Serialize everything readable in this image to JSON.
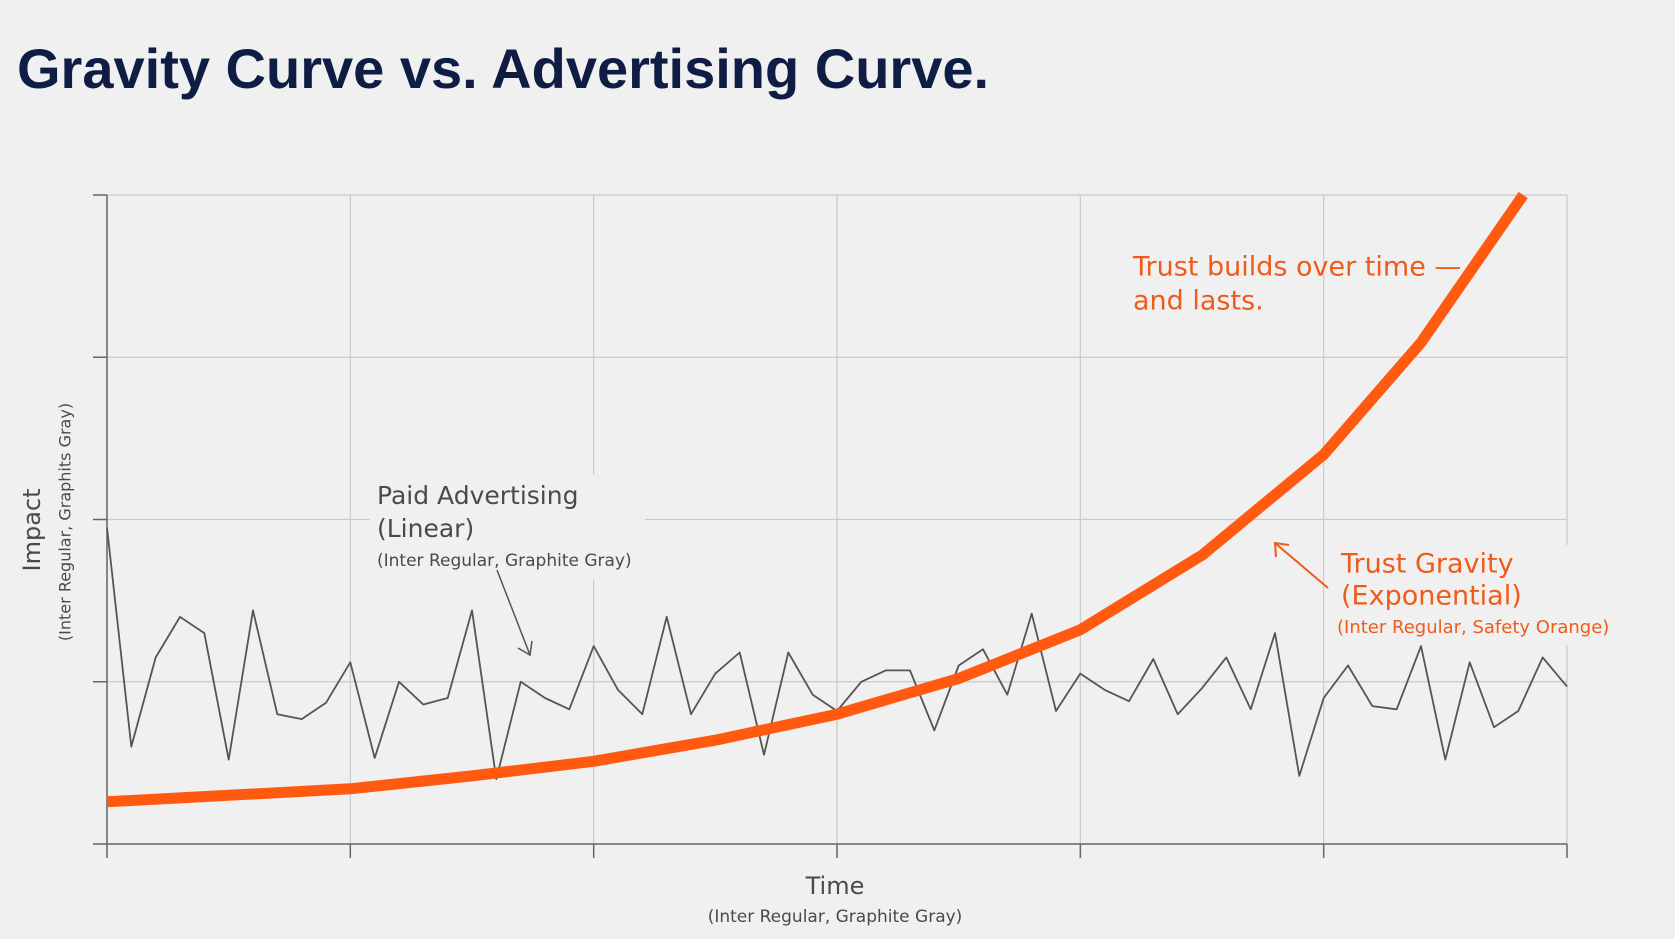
{
  "chart_data": {
    "type": "line",
    "title": "Gravity Curve vs. Advertising Curve.",
    "x_label": "Time",
    "x_label_note": "(Inter Regular, Graphite Gray)",
    "y_label": "Impact",
    "y_label_note": "(Inter Regular, Graphits Gray)",
    "xlim": [
      0,
      6
    ],
    "xticks": [
      0,
      1,
      2,
      3,
      4,
      5,
      6
    ],
    "ylim": [
      0,
      4
    ],
    "yticks": [
      0,
      1,
      2,
      3,
      4
    ],
    "grid": true,
    "annotations": [
      {
        "lines": [
          "Paid Advertising",
          "(Linear)"
        ],
        "note": "(Inter Regular, Graphite Gray)"
      },
      {
        "lines": [
          "Trust builds over time —",
          "and lasts."
        ]
      },
      {
        "lines": [
          "Trust Gravity",
          "(Exponential)"
        ],
        "note": "(Inter Regular, Safety Orange)"
      }
    ],
    "series": [
      {
        "color": "#555555",
        "x": [
          0,
          0.1,
          0.2,
          0.3,
          0.4,
          0.5,
          0.6,
          0.7,
          0.8,
          0.9,
          1,
          1.1,
          1.2,
          1.3,
          1.4,
          1.5,
          1.6,
          1.7,
          1.8,
          1.9,
          2,
          2.1,
          2.2,
          2.3,
          2.4,
          2.5,
          2.6,
          2.7,
          2.8,
          2.9,
          3,
          3.1,
          3.2,
          3.3,
          3.4,
          3.5,
          3.6,
          3.7,
          3.8,
          3.9,
          4,
          4.1,
          4.2,
          4.3,
          4.4,
          4.5,
          4.6,
          4.7,
          4.8,
          4.9,
          5,
          5.1,
          5.2,
          5.3,
          5.4,
          5.5,
          5.6,
          5.7,
          5.8,
          5.9,
          6
        ],
        "values": [
          1.95,
          0.6,
          1.15,
          1.4,
          1.3,
          0.52,
          1.44,
          0.8,
          0.77,
          0.87,
          1.12,
          0.53,
          1.0,
          0.86,
          0.9,
          1.44,
          0.4,
          1.0,
          0.9,
          0.83,
          1.22,
          0.95,
          0.8,
          1.4,
          0.8,
          1.05,
          1.18,
          0.55,
          1.18,
          0.92,
          0.82,
          1.0,
          1.07,
          1.07,
          0.7,
          1.1,
          1.2,
          0.92,
          1.42,
          0.82,
          1.05,
          0.95,
          0.88,
          1.14,
          0.8,
          0.96,
          1.15,
          0.83,
          1.3,
          0.42,
          0.9,
          1.1,
          0.85,
          0.83,
          1.22,
          0.52,
          1.12,
          0.72,
          0.82,
          1.15,
          0.97
        ]
      },
      {
        "color": "#ff5a10",
        "x": [
          0,
          0.5,
          1,
          1.5,
          2,
          2.5,
          3,
          3.5,
          4,
          4.5,
          5,
          5.4,
          5.82
        ],
        "values": [
          0.26,
          0.3,
          0.34,
          0.42,
          0.51,
          0.64,
          0.8,
          1.02,
          1.32,
          1.78,
          2.4,
          3.09,
          4.0
        ]
      }
    ]
  }
}
